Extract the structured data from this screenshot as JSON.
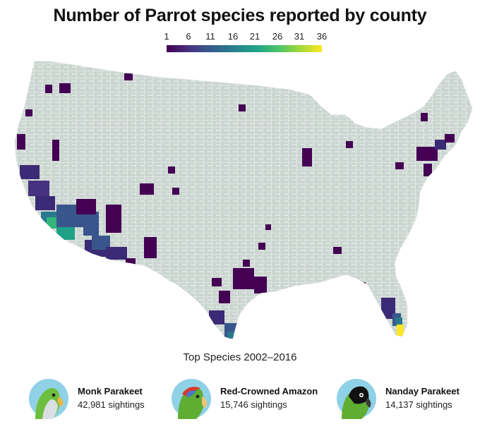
{
  "title": "Number of Parrot species reported by county",
  "legend": {
    "ticks": [
      "1",
      "6",
      "11",
      "16",
      "21",
      "26",
      "31",
      "36"
    ],
    "min": 1,
    "max": 36,
    "colors": [
      "#440154",
      "#46327e",
      "#365c8d",
      "#277f8e",
      "#1fa187",
      "#4ac16d",
      "#a0da39",
      "#fde725"
    ]
  },
  "map": {
    "region": "Contiguous United States",
    "base_color": "#ccd6d1",
    "border_color": "#ffffff",
    "palette": {
      "very_low": "#440154",
      "low": "#3b2a75",
      "mid_low": "#39568c",
      "mid": "#2a788e",
      "mid_high": "#35b779",
      "high": "#fde725"
    }
  },
  "top_species": {
    "heading": "Top Species 2002–2016",
    "items": [
      {
        "name": "Monk Parakeet",
        "sightings": "42,981 sightings",
        "icon": "monk-parakeet-icon"
      },
      {
        "name": "Red-Crowned Amazon",
        "sightings": "15,746 sightings",
        "icon": "red-crowned-amazon-icon"
      },
      {
        "name": "Nanday Parakeet",
        "sightings": "14,137 sightings",
        "icon": "nanday-parakeet-icon"
      }
    ]
  }
}
